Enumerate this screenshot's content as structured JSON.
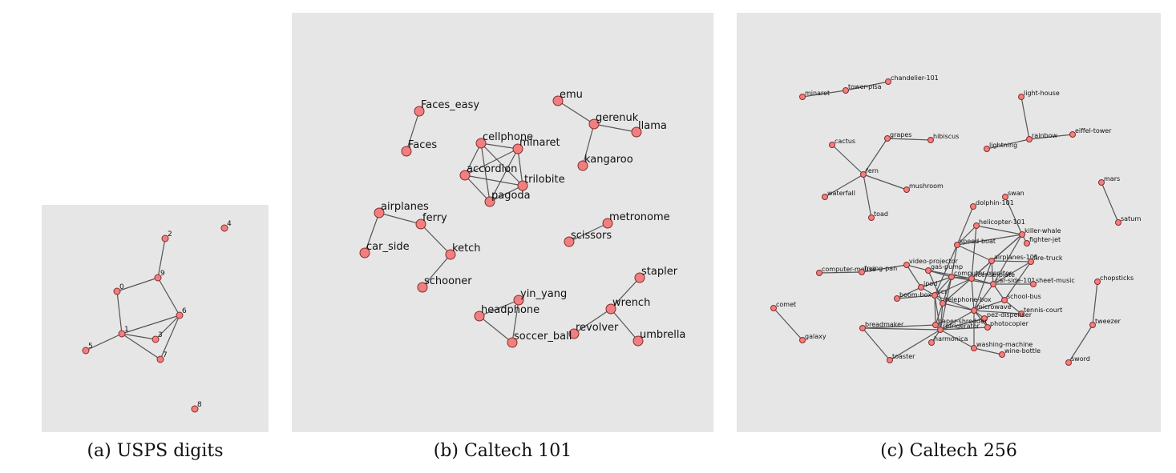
{
  "colors": {
    "panel": "#e6e6e6",
    "node_fill": "#f08080",
    "node_stroke": "#8a2a2a",
    "edge": "#555555"
  },
  "panels": [
    {
      "id": "usps",
      "caption": "(a) USPS digits",
      "nodes": [
        {
          "id": "0",
          "label": "0"
        },
        {
          "id": "1",
          "label": "1"
        },
        {
          "id": "2",
          "label": "2"
        },
        {
          "id": "3",
          "label": "3"
        },
        {
          "id": "4",
          "label": "4"
        },
        {
          "id": "5",
          "label": "5"
        },
        {
          "id": "6",
          "label": "6"
        },
        {
          "id": "7",
          "label": "7"
        },
        {
          "id": "8",
          "label": "8"
        },
        {
          "id": "9",
          "label": "9"
        }
      ],
      "edges": [
        [
          "2",
          "9"
        ],
        [
          "9",
          "0"
        ],
        [
          "9",
          "6"
        ],
        [
          "0",
          "1"
        ],
        [
          "1",
          "5"
        ],
        [
          "1",
          "3"
        ],
        [
          "1",
          "7"
        ],
        [
          "1",
          "6"
        ],
        [
          "6",
          "3"
        ],
        [
          "6",
          "7"
        ]
      ]
    },
    {
      "id": "caltech101",
      "caption": "(b) Caltech 101",
      "nodes": [
        {
          "id": "faces_easy",
          "label": "Faces_easy"
        },
        {
          "id": "faces",
          "label": "Faces"
        },
        {
          "id": "cellphone",
          "label": "cellphone"
        },
        {
          "id": "minaret",
          "label": "minaret"
        },
        {
          "id": "accordion",
          "label": "accordion"
        },
        {
          "id": "trilobite",
          "label": "trilobite"
        },
        {
          "id": "pagoda",
          "label": "pagoda"
        },
        {
          "id": "emu",
          "label": "emu"
        },
        {
          "id": "gerenuk",
          "label": "gerenuk"
        },
        {
          "id": "llama",
          "label": "llama"
        },
        {
          "id": "kangaroo",
          "label": "kangaroo"
        },
        {
          "id": "airplanes",
          "label": "airplanes"
        },
        {
          "id": "ferry",
          "label": "ferry"
        },
        {
          "id": "car_side",
          "label": "car_side"
        },
        {
          "id": "ketch",
          "label": "ketch"
        },
        {
          "id": "schooner",
          "label": "schooner"
        },
        {
          "id": "metronome",
          "label": "metronome"
        },
        {
          "id": "scissors",
          "label": "scissors"
        },
        {
          "id": "stapler",
          "label": "stapler"
        },
        {
          "id": "wrench",
          "label": "wrench"
        },
        {
          "id": "revolver",
          "label": "revolver"
        },
        {
          "id": "umbrella",
          "label": "umbrella"
        },
        {
          "id": "yin_yang",
          "label": "yin_yang"
        },
        {
          "id": "headphone",
          "label": "headphone"
        },
        {
          "id": "soccer_ball",
          "label": "soccer_ball"
        }
      ],
      "edges": [
        [
          "faces_easy",
          "faces"
        ],
        [
          "cellphone",
          "minaret"
        ],
        [
          "cellphone",
          "accordion"
        ],
        [
          "cellphone",
          "trilobite"
        ],
        [
          "cellphone",
          "pagoda"
        ],
        [
          "minaret",
          "accordion"
        ],
        [
          "minaret",
          "trilobite"
        ],
        [
          "minaret",
          "pagoda"
        ],
        [
          "accordion",
          "trilobite"
        ],
        [
          "accordion",
          "pagoda"
        ],
        [
          "trilobite",
          "pagoda"
        ],
        [
          "emu",
          "gerenuk"
        ],
        [
          "gerenuk",
          "llama"
        ],
        [
          "gerenuk",
          "kangaroo"
        ],
        [
          "airplanes",
          "ferry"
        ],
        [
          "airplanes",
          "car_side"
        ],
        [
          "ferry",
          "ketch"
        ],
        [
          "ketch",
          "schooner"
        ],
        [
          "metronome",
          "scissors"
        ],
        [
          "stapler",
          "wrench"
        ],
        [
          "wrench",
          "revolver"
        ],
        [
          "wrench",
          "umbrella"
        ],
        [
          "yin_yang",
          "headphone"
        ],
        [
          "yin_yang",
          "soccer_ball"
        ],
        [
          "headphone",
          "soccer_ball"
        ]
      ]
    },
    {
      "id": "caltech256",
      "caption": "(c) Caltech 256",
      "nodes": [
        {
          "id": "minaret",
          "label": "minaret"
        },
        {
          "id": "tower-pisa",
          "label": "tower-pisa"
        },
        {
          "id": "chandelier-101",
          "label": "chandelier-101"
        },
        {
          "id": "light-house",
          "label": "light-house"
        },
        {
          "id": "rainbow",
          "label": "rainbow"
        },
        {
          "id": "eiffel-tower",
          "label": "eiffel-tower"
        },
        {
          "id": "lightning",
          "label": "lightning"
        },
        {
          "id": "cactus",
          "label": "cactus"
        },
        {
          "id": "grapes",
          "label": "grapes"
        },
        {
          "id": "hibiscus",
          "label": "hibiscus"
        },
        {
          "id": "fern",
          "label": "fern"
        },
        {
          "id": "mushroom",
          "label": "mushroom"
        },
        {
          "id": "waterfall",
          "label": "waterfall"
        },
        {
          "id": "toad",
          "label": "toad"
        },
        {
          "id": "mars",
          "label": "mars"
        },
        {
          "id": "saturn",
          "label": "saturn"
        },
        {
          "id": "dolphin-101",
          "label": "dolphin-101"
        },
        {
          "id": "swan",
          "label": "swan"
        },
        {
          "id": "helicopter-101",
          "label": "helicopter-101"
        },
        {
          "id": "killer-whale",
          "label": "killer-whale"
        },
        {
          "id": "speed-boat",
          "label": "speed-boat"
        },
        {
          "id": "fighter-jet",
          "label": "fighter-jet"
        },
        {
          "id": "airplanes-101",
          "label": "airplanes-101"
        },
        {
          "id": "fire-truck",
          "label": "fire-truck"
        },
        {
          "id": "computer-mouse",
          "label": "computer-mouse"
        },
        {
          "id": "frying-pan",
          "label": "frying-pan"
        },
        {
          "id": "video-projector",
          "label": "video-projector"
        },
        {
          "id": "gas-pump",
          "label": "gas-pump"
        },
        {
          "id": "license-plate",
          "label": "license-plate"
        },
        {
          "id": "computer-monitor",
          "label": "computer-monitor"
        },
        {
          "id": "car-side-101",
          "label": "car-side-101"
        },
        {
          "id": "sheet-music",
          "label": "sheet-music"
        },
        {
          "id": "ipod",
          "label": "ipod"
        },
        {
          "id": "boom-box",
          "label": "boom-box"
        },
        {
          "id": "vcr",
          "label": "vcr"
        },
        {
          "id": "telephone-box",
          "label": "telephone-box"
        },
        {
          "id": "school-bus",
          "label": "school-bus"
        },
        {
          "id": "microwave",
          "label": "microwave"
        },
        {
          "id": "tennis-court",
          "label": "tennis-court"
        },
        {
          "id": "pez-dispenser",
          "label": "pez-dispenser"
        },
        {
          "id": "paper-shredder",
          "label": "paper-shredder"
        },
        {
          "id": "photocopier",
          "label": "photocopier"
        },
        {
          "id": "refrigerator",
          "label": "refrigerator"
        },
        {
          "id": "breadmaker",
          "label": "breadmaker"
        },
        {
          "id": "harmonica",
          "label": "harmonica"
        },
        {
          "id": "washing-machine",
          "label": "washing-machine"
        },
        {
          "id": "wine-bottle",
          "label": "wine-bottle"
        },
        {
          "id": "toaster",
          "label": "toaster"
        },
        {
          "id": "chopsticks",
          "label": "chopsticks"
        },
        {
          "id": "tweezer",
          "label": "tweezer"
        },
        {
          "id": "sword",
          "label": "sword"
        },
        {
          "id": "comet",
          "label": "comet"
        },
        {
          "id": "galaxy",
          "label": "galaxy"
        }
      ],
      "edges": [
        [
          "minaret",
          "tower-pisa"
        ],
        [
          "tower-pisa",
          "chandelier-101"
        ],
        [
          "light-house",
          "rainbow"
        ],
        [
          "rainbow",
          "eiffel-tower"
        ],
        [
          "rainbow",
          "lightning"
        ],
        [
          "fern",
          "cactus"
        ],
        [
          "fern",
          "grapes"
        ],
        [
          "grapes",
          "hibiscus"
        ],
        [
          "fern",
          "mushroom"
        ],
        [
          "fern",
          "waterfall"
        ],
        [
          "fern",
          "toad"
        ],
        [
          "mars",
          "saturn"
        ],
        [
          "comet",
          "galaxy"
        ],
        [
          "chopsticks",
          "tweezer"
        ],
        [
          "tweezer",
          "sword"
        ],
        [
          "computer-mouse",
          "frying-pan"
        ],
        [
          "frying-pan",
          "video-projector"
        ],
        [
          "dolphin-101",
          "speed-boat"
        ],
        [
          "swan",
          "killer-whale"
        ],
        [
          "helicopter-101",
          "speed-boat"
        ],
        [
          "helicopter-101",
          "killer-whale"
        ],
        [
          "speed-boat",
          "killer-whale"
        ],
        [
          "speed-boat",
          "airplanes-101"
        ],
        [
          "killer-whale",
          "airplanes-101"
        ],
        [
          "killer-whale",
          "fighter-jet"
        ],
        [
          "killer-whale",
          "car-side-101"
        ],
        [
          "airplanes-101",
          "fire-truck"
        ],
        [
          "airplanes-101",
          "car-side-101"
        ],
        [
          "airplanes-101",
          "license-plate"
        ],
        [
          "fire-truck",
          "car-side-101"
        ],
        [
          "fire-truck",
          "school-bus"
        ],
        [
          "car-side-101",
          "sheet-music"
        ],
        [
          "car-side-101",
          "school-bus"
        ],
        [
          "car-side-101",
          "license-plate"
        ],
        [
          "car-side-101",
          "computer-monitor"
        ],
        [
          "car-side-101",
          "microwave"
        ],
        [
          "video-projector",
          "gas-pump"
        ],
        [
          "video-projector",
          "ipod"
        ],
        [
          "gas-pump",
          "license-plate"
        ],
        [
          "gas-pump",
          "computer-monitor"
        ],
        [
          "gas-pump",
          "telephone-box"
        ],
        [
          "license-plate",
          "computer-monitor"
        ],
        [
          "license-plate",
          "vcr"
        ],
        [
          "license-plate",
          "microwave"
        ],
        [
          "computer-monitor",
          "ipod"
        ],
        [
          "computer-monitor",
          "vcr"
        ],
        [
          "computer-monitor",
          "telephone-box"
        ],
        [
          "computer-monitor",
          "refrigerator"
        ],
        [
          "ipod",
          "vcr"
        ],
        [
          "ipod",
          "boom-box"
        ],
        [
          "boom-box",
          "vcr"
        ],
        [
          "vcr",
          "telephone-box"
        ],
        [
          "vcr",
          "paper-shredder"
        ],
        [
          "vcr",
          "refrigerator"
        ],
        [
          "vcr",
          "microwave"
        ],
        [
          "telephone-box",
          "microwave"
        ],
        [
          "telephone-box",
          "refrigerator"
        ],
        [
          "telephone-box",
          "paper-shredder"
        ],
        [
          "microwave",
          "pez-dispenser"
        ],
        [
          "microwave",
          "school-bus"
        ],
        [
          "microwave",
          "tennis-court"
        ],
        [
          "microwave",
          "photocopier"
        ],
        [
          "microwave",
          "refrigerator"
        ],
        [
          "microwave",
          "washing-machine"
        ],
        [
          "pez-dispenser",
          "refrigerator"
        ],
        [
          "pez-dispenser",
          "photocopier"
        ],
        [
          "paper-shredder",
          "refrigerator"
        ],
        [
          "paper-shredder",
          "breadmaker"
        ],
        [
          "refrigerator",
          "photocopier"
        ],
        [
          "refrigerator",
          "harmonica"
        ],
        [
          "refrigerator",
          "washing-machine"
        ],
        [
          "refrigerator",
          "breadmaker"
        ],
        [
          "refrigerator",
          "toaster"
        ],
        [
          "washing-machine",
          "wine-bottle"
        ],
        [
          "breadmaker",
          "toaster"
        ],
        [
          "school-bus",
          "tennis-court"
        ],
        [
          "speed-boat",
          "computer-monitor"
        ],
        [
          "helicopter-101",
          "license-plate"
        ],
        [
          "airplanes-101",
          "microwave"
        ],
        [
          "speed-boat",
          "vcr"
        ],
        [
          "killer-whale",
          "telephone-box"
        ]
      ]
    }
  ]
}
